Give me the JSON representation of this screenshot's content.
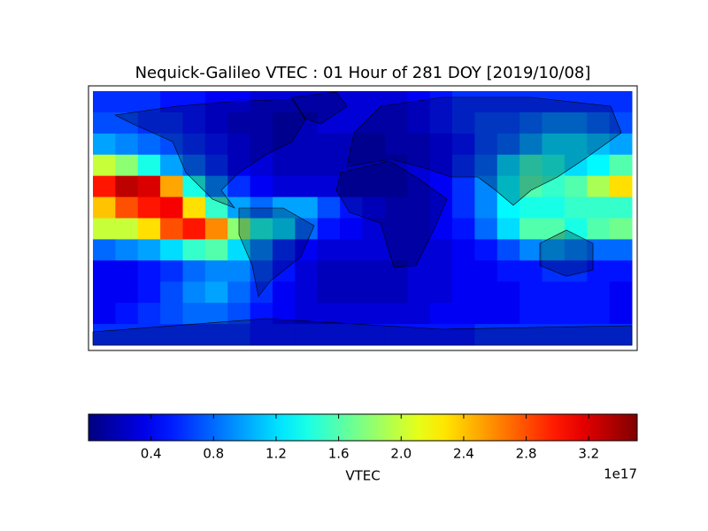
{
  "chart_data": {
    "type": "heatmap",
    "title": "Nequick-Galileo VTEC : 01 Hour of 281 DOY [2019/10/08]",
    "colormap": "jet",
    "z": [
      [
        0.6,
        0.6,
        0.6,
        0.5,
        0.5,
        0.4,
        0.4,
        0.3,
        0.3,
        0.3,
        0.3,
        0.3,
        0.3,
        0.3,
        0.4,
        0.5,
        0.6,
        0.6,
        0.6,
        0.6,
        0.6,
        0.6,
        0.6,
        0.6
      ],
      [
        0.7,
        0.7,
        0.6,
        0.6,
        0.5,
        0.4,
        0.3,
        0.3,
        0.2,
        0.2,
        0.3,
        0.3,
        0.3,
        0.3,
        0.4,
        0.5,
        0.6,
        0.7,
        0.7,
        0.8,
        0.9,
        0.9,
        0.8,
        0.7
      ],
      [
        1.0,
        0.9,
        0.8,
        0.7,
        0.6,
        0.5,
        0.4,
        0.3,
        0.2,
        0.2,
        0.2,
        0.2,
        0.2,
        0.3,
        0.3,
        0.4,
        0.5,
        0.7,
        0.8,
        1.0,
        1.2,
        1.2,
        1.1,
        1.0
      ],
      [
        2.0,
        1.8,
        1.4,
        1.0,
        0.8,
        0.6,
        0.4,
        0.3,
        0.2,
        0.2,
        0.2,
        0.2,
        0.2,
        0.2,
        0.3,
        0.4,
        0.6,
        0.8,
        1.2,
        1.5,
        1.4,
        1.2,
        1.3,
        1.6
      ],
      [
        3.0,
        3.3,
        3.2,
        2.5,
        1.4,
        0.9,
        0.6,
        0.4,
        0.3,
        0.3,
        0.3,
        0.2,
        0.2,
        0.2,
        0.3,
        0.4,
        0.6,
        0.9,
        1.3,
        1.6,
        1.5,
        1.6,
        1.9,
        2.3
      ],
      [
        2.4,
        2.8,
        3.0,
        3.1,
        2.3,
        1.5,
        1.0,
        0.8,
        1.0,
        1.0,
        0.7,
        0.5,
        0.4,
        0.3,
        0.3,
        0.4,
        0.6,
        0.9,
        1.3,
        1.4,
        1.4,
        1.5,
        1.5,
        1.5
      ],
      [
        2.0,
        2.0,
        2.3,
        2.8,
        3.0,
        2.6,
        1.8,
        1.4,
        1.2,
        0.8,
        0.5,
        0.4,
        0.3,
        0.3,
        0.3,
        0.4,
        0.5,
        0.8,
        1.2,
        1.6,
        1.6,
        1.4,
        1.6,
        1.7
      ],
      [
        0.8,
        0.9,
        1.0,
        1.2,
        1.5,
        1.6,
        1.2,
        0.9,
        0.6,
        0.4,
        0.3,
        0.3,
        0.3,
        0.3,
        0.3,
        0.3,
        0.4,
        0.5,
        0.7,
        0.9,
        1.0,
        0.9,
        0.8,
        0.8
      ],
      [
        0.4,
        0.4,
        0.5,
        0.6,
        0.8,
        0.9,
        0.9,
        0.7,
        0.5,
        0.3,
        0.2,
        0.2,
        0.2,
        0.2,
        0.3,
        0.3,
        0.4,
        0.4,
        0.5,
        0.5,
        0.6,
        0.6,
        0.5,
        0.5
      ],
      [
        0.4,
        0.4,
        0.5,
        0.7,
        0.9,
        1.0,
        0.8,
        0.6,
        0.4,
        0.3,
        0.2,
        0.2,
        0.2,
        0.2,
        0.3,
        0.3,
        0.4,
        0.4,
        0.4,
        0.5,
        0.5,
        0.5,
        0.5,
        0.4
      ],
      [
        0.4,
        0.5,
        0.6,
        0.7,
        0.8,
        0.8,
        0.7,
        0.5,
        0.4,
        0.3,
        0.3,
        0.3,
        0.3,
        0.3,
        0.3,
        0.4,
        0.4,
        0.4,
        0.4,
        0.5,
        0.5,
        0.5,
        0.5,
        0.4
      ],
      [
        0.6,
        0.6,
        0.6,
        0.6,
        0.6,
        0.6,
        0.6,
        0.5,
        0.5,
        0.5,
        0.5,
        0.5,
        0.5,
        0.5,
        0.5,
        0.5,
        0.5,
        0.6,
        0.6,
        0.6,
        0.6,
        0.6,
        0.6,
        0.6
      ]
    ],
    "colorbar": {
      "label": "VTEC",
      "offset_label": "1e17",
      "clim": [
        0,
        3.51
      ],
      "ticks": [
        0.4,
        0.8,
        1.2,
        1.6,
        {
          "value": 2,
          "label": "2.0"
        },
        2.4,
        2.8,
        3.2
      ]
    }
  }
}
